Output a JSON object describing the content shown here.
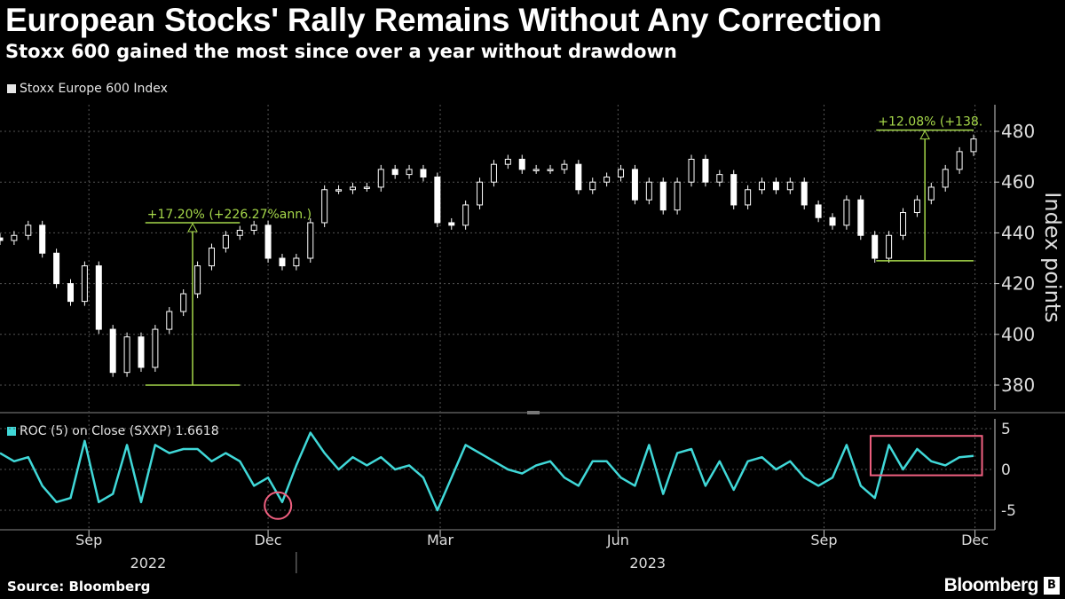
{
  "header": {
    "title": "European Stocks' Rally Remains Without Any Correction",
    "subtitle": "Stoxx 600 gained the most since over a year without drawdown"
  },
  "footer": {
    "source": "Source: Bloomberg",
    "brand": "Bloomberg",
    "brand_icon": "B"
  },
  "colors": {
    "price": "#ffffff",
    "roc": "#40d8d8",
    "annotation": "#a6d84a",
    "highlight": "#f06080",
    "grid": "#555555"
  },
  "chart_data": [
    {
      "type": "candlestick",
      "legend": "Stoxx Europe 600 Index",
      "ylabel": "Index points",
      "ylim": [
        368,
        490
      ],
      "yticks": [
        380,
        400,
        420,
        440,
        460,
        480
      ],
      "yticks_labels": [
        "380",
        "400",
        "420",
        "440",
        "460",
        "480"
      ],
      "grid": true,
      "closes": [
        437,
        439,
        443,
        432,
        420,
        413,
        427,
        402,
        385,
        399,
        387,
        402,
        409,
        416,
        427,
        434,
        439,
        441,
        443,
        430,
        427,
        430,
        444,
        457,
        457,
        458,
        458,
        465,
        463,
        465,
        462,
        444,
        443,
        451,
        460,
        467,
        469,
        465,
        465,
        465,
        467,
        457,
        460,
        462,
        465,
        453,
        460,
        449,
        460,
        469,
        460,
        463,
        451,
        457,
        460,
        457,
        460,
        451,
        446,
        443,
        453,
        439,
        430,
        439,
        448,
        453,
        458,
        465,
        472,
        477
      ],
      "annotations": [
        {
          "label": "+17.20% (+226.27%ann.)",
          "from_index": 10.3,
          "to_index": 17,
          "low": 380,
          "high": 444
        },
        {
          "label": "+12.08% (+138.",
          "from_index": 62.1,
          "to_index": 69,
          "low": 429,
          "high": 480.5
        }
      ]
    },
    {
      "type": "line",
      "legend": "ROC (5)  on Close (SXXP) 1.6618",
      "ylim": [
        -7,
        6
      ],
      "yticks": [
        5,
        0,
        -5
      ],
      "yticks_labels": [
        "5",
        "0",
        "-5"
      ],
      "values": [
        2,
        1,
        1.5,
        -2,
        -4,
        -3.5,
        3.5,
        -4,
        -3,
        3,
        -4,
        3,
        2,
        2.5,
        2.5,
        1,
        2,
        1,
        -2,
        -1,
        -4,
        0.5,
        4.5,
        2,
        0,
        1.5,
        0.5,
        1.5,
        0,
        0.5,
        -1,
        -5,
        -1,
        3,
        2,
        1,
        0,
        -0.5,
        0.5,
        1,
        -1,
        -2,
        1,
        1,
        -1,
        -2,
        3,
        -3,
        2,
        2.5,
        -2,
        1,
        -2.5,
        1,
        1.5,
        0,
        1,
        -1,
        -2,
        -1,
        3,
        -2,
        -3.5,
        3,
        0,
        2.5,
        1,
        0.5,
        1.5,
        1.6618
      ],
      "highlights": [
        {
          "shape": "circle",
          "index": 19.7,
          "value": -4
        },
        {
          "shape": "rect",
          "from_index": 61.7,
          "to_index": 69.6,
          "low": -0.5,
          "high": 4
        }
      ]
    }
  ],
  "xaxis": {
    "months": [
      {
        "label": "Sep",
        "index": 6.3
      },
      {
        "label": "Dec",
        "index": 19
      },
      {
        "label": "Mar",
        "index": 31.2
      },
      {
        "label": "Jun",
        "index": 43.8
      },
      {
        "label": "Sep",
        "index": 58.4
      },
      {
        "label": "Dec",
        "index": 69.1
      }
    ],
    "years": [
      {
        "label": "2022",
        "index": 10.5
      },
      {
        "label": "2023",
        "index": 45.9
      }
    ],
    "year_divider_index": 21
  }
}
